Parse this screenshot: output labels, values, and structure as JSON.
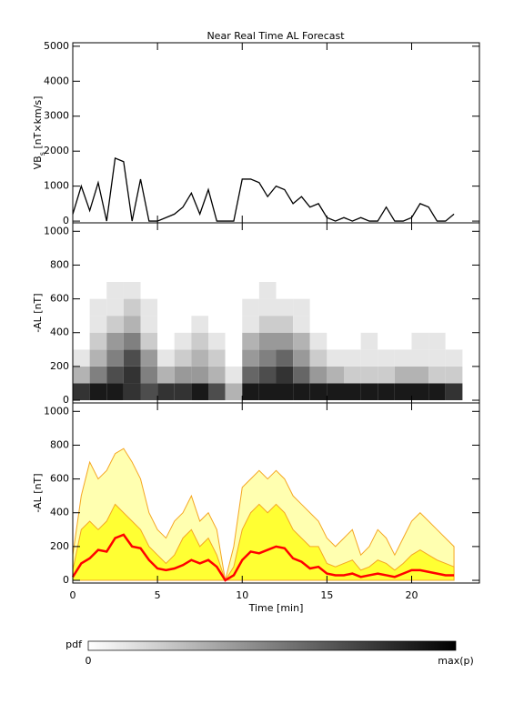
{
  "chart_data": [
    {
      "type": "line",
      "title": "Near Real Time AL Forecast",
      "ylabel": [
        "VB",
        "s",
        " [nT×km/s]"
      ],
      "xlim": [
        0,
        24
      ],
      "xticks": [
        0,
        5,
        10,
        15,
        20
      ],
      "ylim": [
        -50,
        5100
      ],
      "yticks": [
        0,
        1000,
        2000,
        3000,
        4000,
        5000
      ],
      "x": [
        0,
        0.5,
        1,
        1.5,
        2,
        2.5,
        3,
        3.5,
        4,
        4.5,
        5,
        5.5,
        6,
        6.5,
        7,
        7.5,
        8,
        8.5,
        9,
        9.5,
        10,
        10.5,
        11,
        11.5,
        12,
        12.5,
        13,
        13.5,
        14,
        14.5,
        15,
        15.5,
        16,
        16.5,
        17,
        17.5,
        18,
        18.5,
        19,
        19.5,
        20,
        20.5,
        21,
        21.5,
        22,
        22.5
      ],
      "series": [
        {
          "color": "#000000",
          "values": [
            200,
            1000,
            300,
            1100,
            0,
            1800,
            1700,
            0,
            1200,
            0,
            0,
            100,
            200,
            400,
            800,
            200,
            900,
            0,
            0,
            0,
            1200,
            1200,
            1100,
            700,
            1000,
            900,
            500,
            700,
            400,
            500,
            100,
            0,
            100,
            0,
            100,
            0,
            0,
            400,
            0,
            0,
            100,
            500,
            400,
            0,
            0,
            200
          ]
        }
      ]
    },
    {
      "type": "heatmap",
      "ylabel": "-AL [nT]",
      "xlim": [
        0,
        24
      ],
      "xticks": [
        0,
        5,
        10,
        15,
        20
      ],
      "ylim": [
        -16,
        1050
      ],
      "yticks": [
        0,
        200,
        400,
        600,
        800,
        1000
      ],
      "x_bins": [
        0,
        1,
        2,
        3,
        4,
        5,
        6,
        7,
        8,
        9,
        10,
        11,
        12,
        13,
        14,
        15,
        16,
        17,
        18,
        19,
        20,
        21,
        22,
        23
      ],
      "y_bins": [
        0,
        100,
        200,
        300,
        400,
        500,
        600,
        700
      ],
      "z": [
        [
          0.8,
          0.9,
          0.9,
          0.8,
          0.7,
          0.8,
          0.8,
          0.9,
          0.7,
          0.3,
          0.9,
          0.9,
          0.9,
          0.9,
          0.9,
          0.9,
          0.9,
          0.9,
          0.9,
          0.9,
          0.9,
          0.9,
          0.8
        ],
        [
          0.3,
          0.5,
          0.7,
          0.8,
          0.5,
          0.3,
          0.4,
          0.4,
          0.3,
          0.1,
          0.6,
          0.7,
          0.8,
          0.6,
          0.4,
          0.3,
          0.2,
          0.2,
          0.2,
          0.3,
          0.3,
          0.2,
          0.2
        ],
        [
          0.1,
          0.3,
          0.5,
          0.7,
          0.4,
          0.1,
          0.2,
          0.3,
          0.2,
          0,
          0.4,
          0.5,
          0.6,
          0.4,
          0.2,
          0.1,
          0.1,
          0.1,
          0.1,
          0.1,
          0.1,
          0.1,
          0.1
        ],
        [
          0,
          0.2,
          0.4,
          0.5,
          0.2,
          0,
          0.1,
          0.2,
          0.1,
          0,
          0.3,
          0.4,
          0.4,
          0.3,
          0.1,
          0,
          0,
          0.1,
          0,
          0,
          0.1,
          0.1,
          0
        ],
        [
          0,
          0.1,
          0.2,
          0.3,
          0.1,
          0,
          0,
          0.1,
          0,
          0,
          0.1,
          0.2,
          0.2,
          0.1,
          0,
          0,
          0,
          0,
          0,
          0,
          0,
          0,
          0
        ],
        [
          0,
          0.1,
          0.1,
          0.2,
          0.1,
          0,
          0,
          0,
          0,
          0,
          0.1,
          0.1,
          0.1,
          0.1,
          0,
          0,
          0,
          0,
          0,
          0,
          0,
          0,
          0
        ],
        [
          0,
          0,
          0.1,
          0.1,
          0,
          0,
          0,
          0,
          0,
          0,
          0,
          0.1,
          0,
          0,
          0,
          0,
          0,
          0,
          0,
          0,
          0,
          0,
          0
        ]
      ],
      "colorbar": {
        "label": "pdf",
        "min_label": "0",
        "max_label": "max(p)"
      }
    },
    {
      "type": "area",
      "ylabel": "-AL [nT]",
      "xlabel": "Time [min]",
      "xlim": [
        0,
        24
      ],
      "xticks": [
        0,
        5,
        10,
        15,
        20
      ],
      "ylim": [
        -16,
        1050
      ],
      "yticks": [
        0,
        200,
        400,
        600,
        800,
        1000
      ],
      "x": [
        0,
        0.5,
        1,
        1.5,
        2,
        2.5,
        3,
        3.5,
        4,
        4.5,
        5,
        5.5,
        6,
        6.5,
        7,
        7.5,
        8,
        8.5,
        9,
        9.5,
        10,
        10.5,
        11,
        11.5,
        12,
        12.5,
        13,
        13.5,
        14,
        14.5,
        15,
        15.5,
        16,
        16.5,
        17,
        17.5,
        18,
        18.5,
        19,
        19.5,
        20,
        20.5,
        21,
        21.5,
        22,
        22.5
      ],
      "series": [
        {
          "color": "#f5a623",
          "fill": "#ffffb0",
          "values": [
            150,
            500,
            700,
            600,
            650,
            750,
            780,
            700,
            600,
            400,
            300,
            250,
            350,
            400,
            500,
            350,
            400,
            300,
            0,
            200,
            550,
            600,
            650,
            600,
            650,
            600,
            500,
            450,
            400,
            350,
            250,
            200,
            250,
            300,
            150,
            200,
            300,
            250,
            150,
            250,
            350,
            400,
            350,
            300,
            250,
            200
          ]
        },
        {
          "color": "#f5a623",
          "fill": "#ffff33",
          "values": [
            60,
            300,
            350,
            300,
            350,
            450,
            400,
            350,
            300,
            200,
            150,
            100,
            150,
            250,
            300,
            200,
            250,
            150,
            0,
            80,
            300,
            400,
            450,
            400,
            450,
            400,
            300,
            250,
            200,
            200,
            100,
            80,
            100,
            120,
            60,
            80,
            120,
            100,
            60,
            100,
            150,
            180,
            150,
            120,
            100,
            80
          ]
        },
        {
          "color": "#ff0000",
          "values": [
            20,
            100,
            130,
            180,
            170,
            250,
            270,
            200,
            190,
            120,
            70,
            60,
            70,
            90,
            120,
            100,
            120,
            80,
            0,
            30,
            120,
            170,
            160,
            180,
            200,
            190,
            130,
            110,
            70,
            80,
            40,
            30,
            30,
            40,
            20,
            30,
            40,
            30,
            20,
            40,
            60,
            60,
            50,
            40,
            30,
            30
          ]
        }
      ]
    }
  ]
}
